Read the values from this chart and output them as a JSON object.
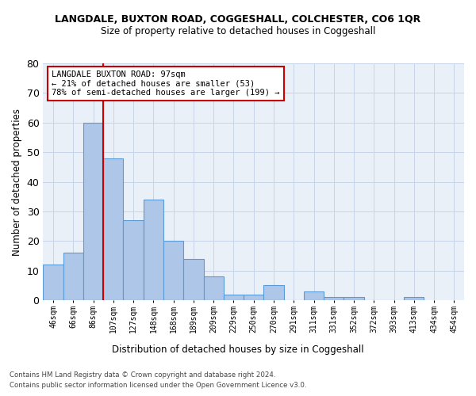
{
  "title": "LANGDALE, BUXTON ROAD, COGGESHALL, COLCHESTER, CO6 1QR",
  "subtitle": "Size of property relative to detached houses in Coggeshall",
  "xlabel": "Distribution of detached houses by size in Coggeshall",
  "ylabel": "Number of detached properties",
  "bar_values": [
    12,
    16,
    60,
    48,
    27,
    34,
    20,
    14,
    8,
    2,
    2,
    5,
    0,
    3,
    1,
    1,
    0,
    0,
    1
  ],
  "bin_labels": [
    "46sqm",
    "66sqm",
    "86sqm",
    "107sqm",
    "127sqm",
    "148sqm",
    "168sqm",
    "189sqm",
    "209sqm",
    "229sqm",
    "250sqm",
    "270sqm",
    "291sqm",
    "311sqm",
    "331sqm",
    "352sqm",
    "372sqm",
    "393sqm",
    "413sqm"
  ],
  "extra_ticks": [
    "434sqm",
    "454sqm"
  ],
  "bar_color": "#aec6e8",
  "bar_edge_color": "#5b9bd5",
  "bar_edge_width": 0.8,
  "grid_color": "#c8d4e8",
  "background_color": "#eaf0f8",
  "ylim": [
    0,
    80
  ],
  "yticks": [
    0,
    10,
    20,
    30,
    40,
    50,
    60,
    70,
    80
  ],
  "marker_bar_index": 2,
  "marker_color": "#cc0000",
  "annotation_line1": "LANGDALE BUXTON ROAD: 97sqm",
  "annotation_line2": "← 21% of detached houses are smaller (53)",
  "annotation_line3": "78% of semi-detached houses are larger (199) →",
  "annotation_box_color": "#ffffff",
  "annotation_box_edge": "#cc0000",
  "footer_line1": "Contains HM Land Registry data © Crown copyright and database right 2024.",
  "footer_line2": "Contains public sector information licensed under the Open Government Licence v3.0."
}
